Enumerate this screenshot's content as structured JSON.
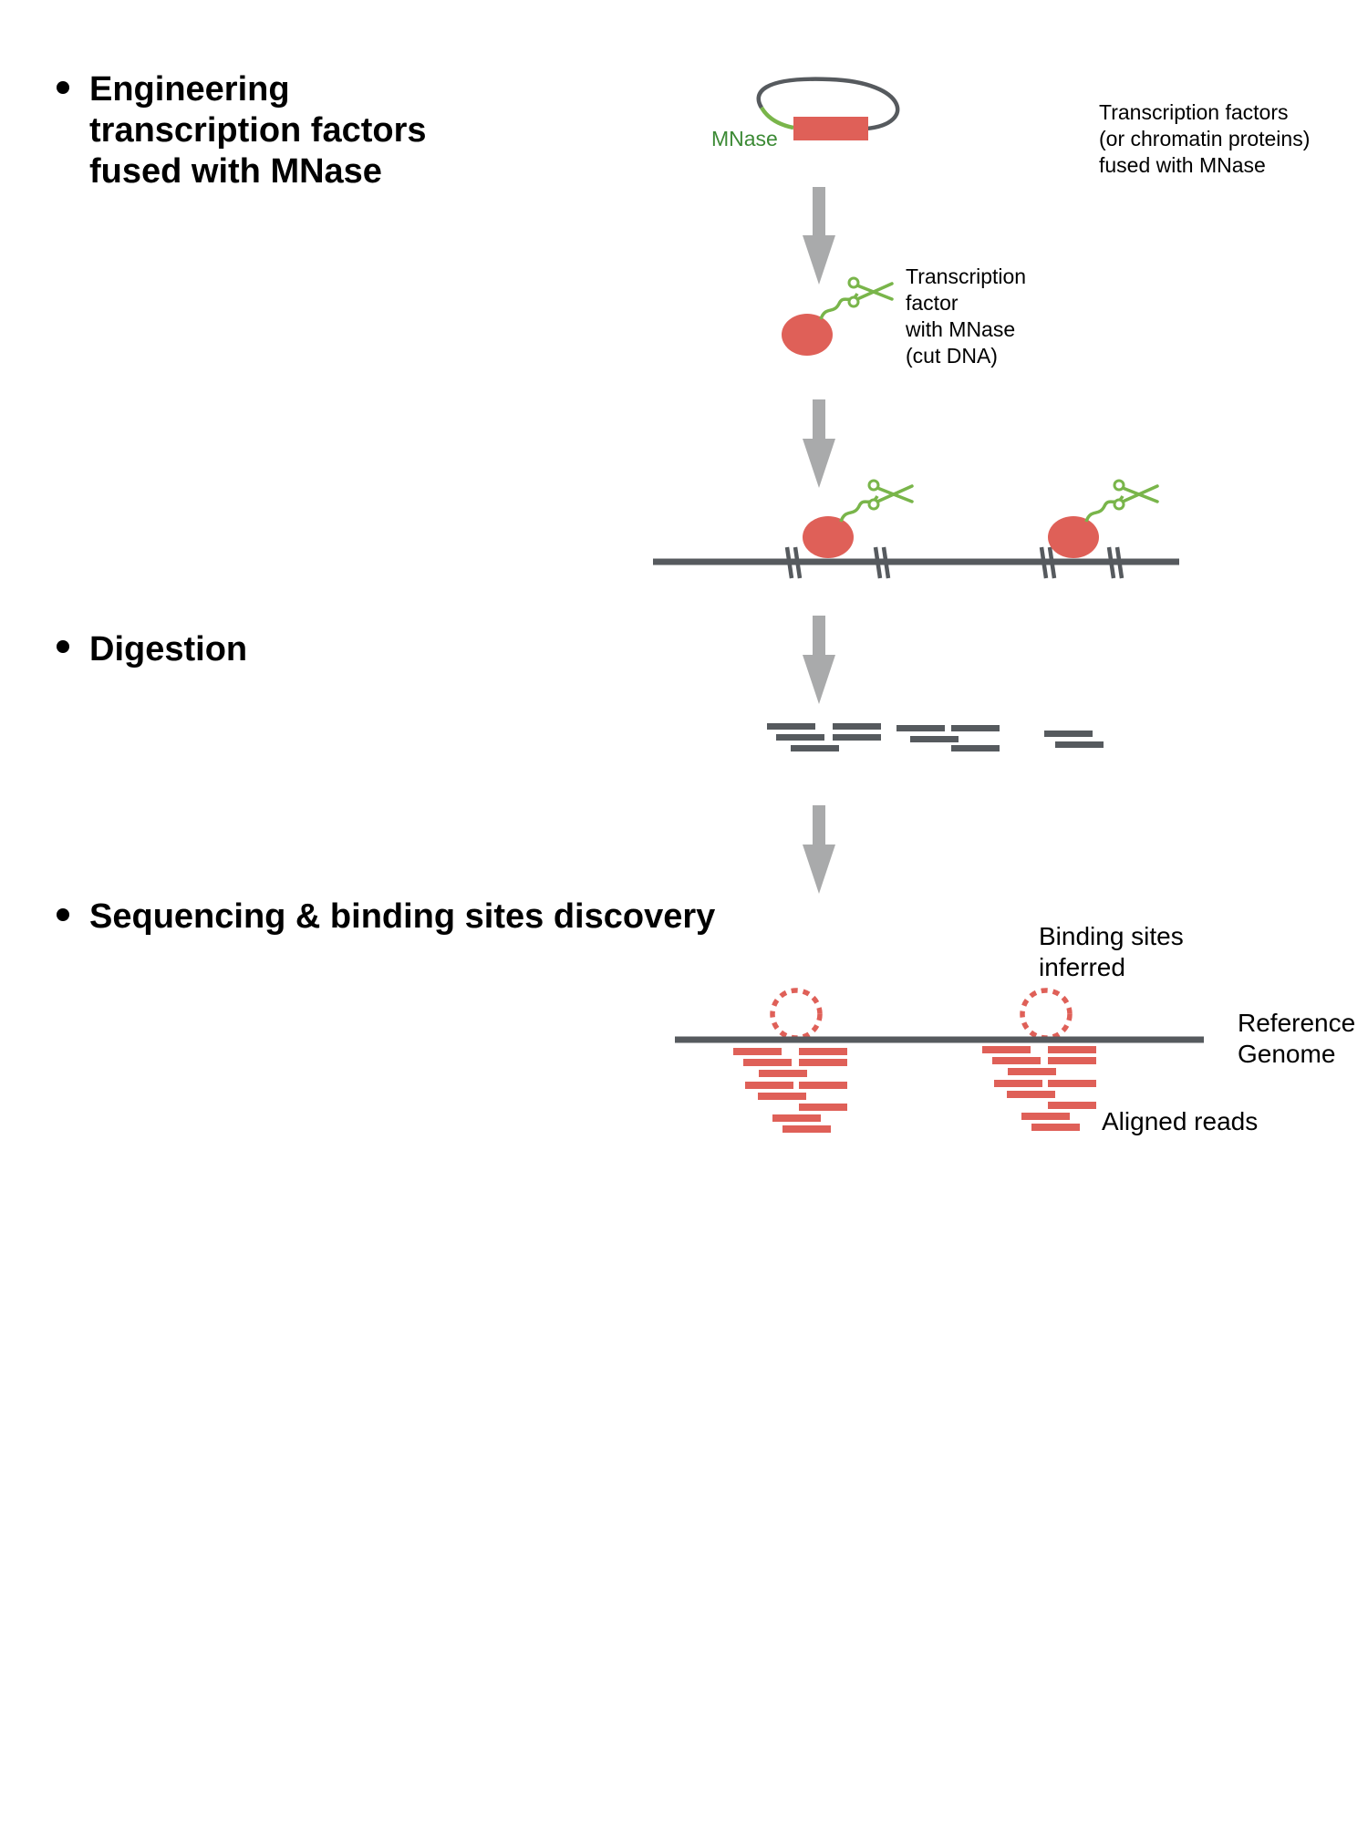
{
  "steps": [
    {
      "lines": [
        "Engineering",
        "transcription factors",
        "fused with MNase"
      ]
    },
    {
      "lines": [
        "Digestion"
      ]
    },
    {
      "lines": [
        "Sequencing & binding sites discovery"
      ]
    }
  ],
  "labels": {
    "mnase": "MNase",
    "fusion": [
      "Transcription factors",
      "(or chromatin proteins)",
      "fused with MNase"
    ],
    "tf_mnase": [
      "Transcription",
      "factor",
      "with MNase",
      "(cut DNA)"
    ],
    "binding_sites": [
      "Binding sites",
      "inferred"
    ],
    "reference_genome": [
      "Reference",
      "Genome"
    ],
    "aligned_reads": "Aligned reads"
  },
  "colors": {
    "protein_red": "#df6058",
    "dna_gray": "#565a5e",
    "linker_green": "#79b54a",
    "mnase_text_green": "#3c8a35",
    "arrow_gray": "#a9aaab"
  },
  "icons": [
    "scissors-icon",
    "bullet-icon",
    "down-arrow-icon"
  ]
}
